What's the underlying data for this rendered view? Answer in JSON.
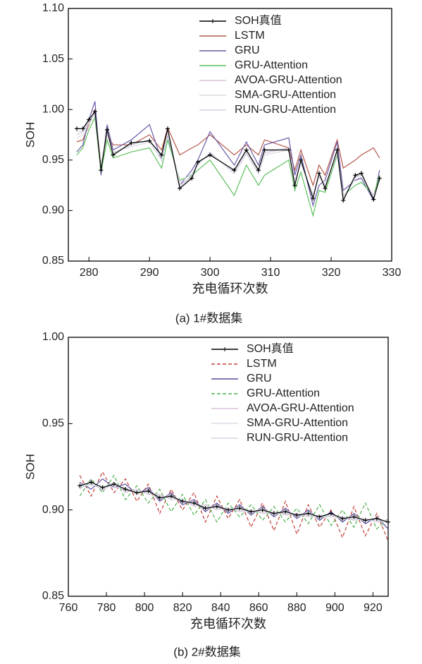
{
  "chart_data": [
    {
      "type": "line",
      "caption": "(a) 1#数据集",
      "xlabel": "充电循环次数",
      "ylabel": "SOH",
      "legend": "upper right",
      "xlim": [
        276.6,
        330
      ],
      "xticks": [
        280,
        290,
        300,
        310,
        320,
        330
      ],
      "ylim": [
        0.85,
        1.1
      ],
      "yticks": [
        0.85,
        {
          "value": 0.9,
          "label": "0.90"
        },
        0.95,
        {
          "value": 1.0,
          "label": "1.00"
        },
        1.05,
        {
          "value": 1.1,
          "label": "1.10"
        }
      ],
      "x": [
        278,
        279,
        280,
        281,
        282,
        283,
        284,
        287,
        290,
        292,
        293,
        295,
        297,
        298,
        300,
        304,
        306,
        308,
        309,
        313,
        314,
        315,
        317,
        318,
        319,
        321,
        322,
        324,
        325,
        327,
        328
      ],
      "series": [
        {
          "name": "SOH真值",
          "color": "#000000",
          "marker": "+",
          "linestyle": "solid",
          "values": [
            0.981,
            0.981,
            0.99,
            0.998,
            0.94,
            0.98,
            0.955,
            0.967,
            0.969,
            0.955,
            0.981,
            0.922,
            0.932,
            0.948,
            0.955,
            0.94,
            0.96,
            0.94,
            0.96,
            0.96,
            0.925,
            0.95,
            0.912,
            0.937,
            0.922,
            0.96,
            0.91,
            0.935,
            0.937,
            0.911,
            0.932
          ]
        },
        {
          "name": "LSTM",
          "color": "#b5584a",
          "linestyle": "solid",
          "values": [
            0.968,
            0.97,
            0.985,
            1.0,
            0.945,
            0.975,
            0.965,
            0.965,
            0.975,
            0.96,
            0.982,
            0.955,
            0.962,
            0.965,
            0.975,
            0.955,
            0.965,
            0.955,
            0.97,
            0.962,
            0.94,
            0.96,
            0.925,
            0.945,
            0.935,
            0.97,
            0.942,
            0.95,
            0.955,
            0.962,
            0.952
          ]
        },
        {
          "name": "GRU",
          "color": "#6a5aa8",
          "linestyle": "solid",
          "values": [
            0.958,
            0.965,
            0.99,
            1.008,
            0.935,
            0.985,
            0.96,
            0.97,
            0.985,
            0.95,
            0.975,
            0.925,
            0.94,
            0.95,
            0.978,
            0.945,
            0.968,
            0.945,
            0.965,
            0.972,
            0.935,
            0.955,
            0.905,
            0.925,
            0.93,
            0.968,
            0.92,
            0.93,
            0.932,
            0.91,
            0.94
          ]
        },
        {
          "name": "GRU-Attention",
          "color": "#5cbf5c",
          "linestyle": "solid",
          "values": [
            0.955,
            0.962,
            0.98,
            0.992,
            0.938,
            0.97,
            0.952,
            0.958,
            0.962,
            0.942,
            0.97,
            0.93,
            0.935,
            0.94,
            0.95,
            0.915,
            0.945,
            0.925,
            0.935,
            0.95,
            0.92,
            0.938,
            0.895,
            0.92,
            0.918,
            0.955,
            0.915,
            0.925,
            0.928,
            0.915,
            0.935
          ]
        },
        {
          "name": "AVOA-GRU-Attention",
          "color": "#d8c4d8",
          "linestyle": "solid",
          "values": [
            0.975,
            0.978,
            0.988,
            0.996,
            0.942,
            0.978,
            0.957,
            0.965,
            0.97,
            0.952,
            0.978,
            0.925,
            0.934,
            0.946,
            0.957,
            0.938,
            0.958,
            0.938,
            0.957,
            0.962,
            0.928,
            0.948,
            0.914,
            0.935,
            0.924,
            0.958,
            0.912,
            0.933,
            0.935,
            0.913,
            0.93
          ]
        },
        {
          "name": "SMA-GRU-Attention",
          "color": "#dcdce6",
          "linestyle": "solid",
          "values": [
            0.972,
            0.975,
            0.986,
            0.994,
            0.945,
            0.976,
            0.958,
            0.963,
            0.968,
            0.95,
            0.976,
            0.928,
            0.936,
            0.945,
            0.958,
            0.936,
            0.956,
            0.936,
            0.955,
            0.96,
            0.93,
            0.946,
            0.916,
            0.933,
            0.926,
            0.956,
            0.914,
            0.931,
            0.933,
            0.915,
            0.929
          ]
        },
        {
          "name": "RUN-GRU-Attention",
          "color": "#cfd8e2",
          "linestyle": "solid",
          "values": [
            0.978,
            0.979,
            0.989,
            0.997,
            0.941,
            0.979,
            0.956,
            0.966,
            0.969,
            0.953,
            0.98,
            0.923,
            0.933,
            0.947,
            0.956,
            0.939,
            0.959,
            0.939,
            0.959,
            0.961,
            0.926,
            0.949,
            0.913,
            0.936,
            0.923,
            0.959,
            0.911,
            0.934,
            0.936,
            0.912,
            0.931
          ]
        }
      ]
    },
    {
      "type": "line",
      "caption": "(b) 2#数据集",
      "xlabel": "充电循环次数",
      "ylabel": "SOH",
      "legend": "upper right",
      "xlim": [
        760,
        928
      ],
      "xticks": [
        760,
        780,
        800,
        820,
        840,
        860,
        880,
        900,
        920
      ],
      "ylim": [
        0.85,
        1.0
      ],
      "yticks": [
        0.85,
        {
          "value": 0.9,
          "label": "0.90"
        },
        0.95,
        {
          "value": 1.0,
          "label": "1.00"
        }
      ],
      "x": [
        766,
        772,
        778,
        784,
        790,
        796,
        802,
        808,
        814,
        820,
        826,
        832,
        838,
        844,
        850,
        856,
        862,
        868,
        874,
        880,
        886,
        892,
        898,
        904,
        910,
        916,
        922,
        928
      ],
      "series": [
        {
          "name": "SOH真值",
          "color": "#000000",
          "marker": "+",
          "linestyle": "solid",
          "values": [
            0.914,
            0.916,
            0.913,
            0.915,
            0.912,
            0.91,
            0.911,
            0.907,
            0.908,
            0.905,
            0.904,
            0.901,
            0.902,
            0.9,
            0.901,
            0.899,
            0.9,
            0.898,
            0.899,
            0.897,
            0.898,
            0.896,
            0.898,
            0.895,
            0.896,
            0.894,
            0.895,
            0.893
          ]
        },
        {
          "name": "LSTM",
          "color": "#c0403a",
          "linestyle": "dashed",
          "values": [
            0.92,
            0.908,
            0.922,
            0.91,
            0.918,
            0.905,
            0.915,
            0.898,
            0.912,
            0.9,
            0.91,
            0.893,
            0.908,
            0.895,
            0.906,
            0.89,
            0.904,
            0.888,
            0.905,
            0.886,
            0.903,
            0.89,
            0.9,
            0.884,
            0.902,
            0.885,
            0.898,
            0.882
          ]
        },
        {
          "name": "GRU",
          "color": "#5a4aa0",
          "linestyle": "solid",
          "values": [
            0.916,
            0.912,
            0.918,
            0.913,
            0.915,
            0.909,
            0.913,
            0.905,
            0.91,
            0.903,
            0.906,
            0.899,
            0.904,
            0.898,
            0.903,
            0.897,
            0.902,
            0.896,
            0.901,
            0.895,
            0.9,
            0.894,
            0.899,
            0.893,
            0.898,
            0.892,
            0.896,
            0.889
          ]
        },
        {
          "name": "GRU-Attention",
          "color": "#4cb04c",
          "linestyle": "dashed",
          "values": [
            0.908,
            0.918,
            0.91,
            0.92,
            0.906,
            0.914,
            0.904,
            0.912,
            0.899,
            0.909,
            0.897,
            0.906,
            0.893,
            0.904,
            0.896,
            0.903,
            0.894,
            0.902,
            0.893,
            0.901,
            0.892,
            0.903,
            0.891,
            0.9,
            0.89,
            0.904,
            0.889,
            0.895
          ]
        },
        {
          "name": "AVOA-GRU-Attention",
          "color": "#d8c4d8",
          "linestyle": "solid",
          "values": [
            0.912,
            0.917,
            0.911,
            0.916,
            0.91,
            0.912,
            0.909,
            0.909,
            0.906,
            0.906,
            0.902,
            0.903,
            0.9,
            0.901,
            0.899,
            0.9,
            0.898,
            0.899,
            0.897,
            0.898,
            0.896,
            0.897,
            0.896,
            0.896,
            0.894,
            0.895,
            0.893,
            0.894
          ]
        },
        {
          "name": "SMA-GRU-Attention",
          "color": "#dcdce6",
          "linestyle": "solid",
          "values": [
            0.915,
            0.914,
            0.914,
            0.913,
            0.913,
            0.909,
            0.912,
            0.906,
            0.909,
            0.904,
            0.905,
            0.9,
            0.903,
            0.899,
            0.902,
            0.898,
            0.901,
            0.897,
            0.9,
            0.896,
            0.899,
            0.895,
            0.898,
            0.894,
            0.897,
            0.893,
            0.896,
            0.892
          ]
        },
        {
          "name": "RUN-GRU-Attention",
          "color": "#cfd8e2",
          "linestyle": "solid",
          "values": [
            0.913,
            0.915,
            0.912,
            0.916,
            0.911,
            0.911,
            0.91,
            0.908,
            0.907,
            0.906,
            0.903,
            0.902,
            0.901,
            0.901,
            0.9,
            0.899,
            0.899,
            0.898,
            0.898,
            0.897,
            0.897,
            0.896,
            0.897,
            0.895,
            0.895,
            0.894,
            0.894,
            0.893
          ]
        }
      ]
    }
  ]
}
